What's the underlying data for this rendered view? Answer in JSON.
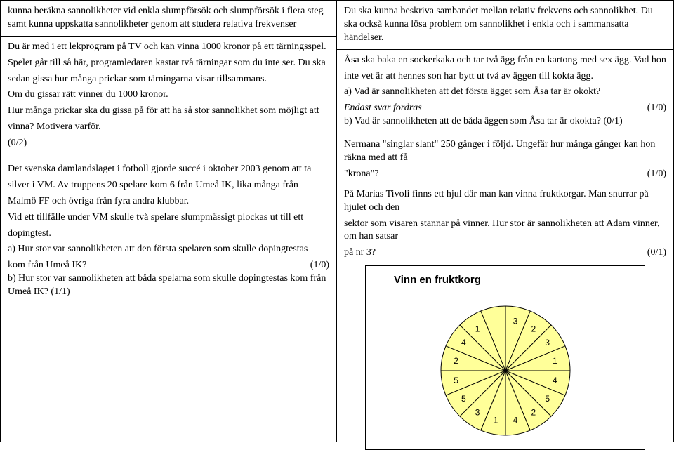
{
  "left": {
    "intro": "kunna beräkna sannolikheter vid enkla slumpförsök och slumpförsök i flera steg samt kunna uppskatta sannolikheter genom att studera relativa frekvenser",
    "problem1": {
      "p1": "Du är med i ett lekprogram på TV och kan vinna 1000 kronor på ett tärningsspel.",
      "p2": "Spelet går till så här, programledaren kastar två tärningar som du inte ser. Du ska",
      "p3": "sedan gissa hur många prickar som tärningarna visar tillsammans.",
      "p4": "Om du gissar rätt vinner du 1000 kronor.",
      "p5": "Hur många prickar ska du gissa på för att ha så stor sannolikhet som möjligt att",
      "p6a": "vinna? Motivera varför.",
      "p6b": "(0/2)"
    },
    "problem2": {
      "p1": "Det svenska damlandslaget i fotboll gjorde succé i oktober 2003 genom att ta",
      "p2": "silver i VM. Av truppens 20 spelare kom 6 från Umeå IK, lika många från",
      "p3": "Malmö FF och övriga från fyra andra klubbar.",
      "p4": "Vid ett tillfälle under VM skulle två spelare slumpmässigt plockas ut till ett",
      "p5": "dopingtest.",
      "qa_text": "a) Hur stor var sannolikheten att den första spelaren som skulle dopingtestas",
      "qa_line": "kom från Umeå IK?",
      "qa_score": "(1/0)",
      "qb_text": "b) Hur stor var sannolikheten att båda spelarna som skulle dopingtestas kom från Umeå IK?   (1/1)"
    }
  },
  "right": {
    "intro": "Du ska kunna beskriva sambandet mellan relativ frekvens och sannolikhet. Du ska också kunna lösa problem om sannolikhet i enkla och i sammansatta händelser.",
    "problem1": {
      "p1": "Åsa ska baka en sockerkaka och tar två ägg från en kartong med sex ägg. Vad hon",
      "p2": "inte vet är att hennes son har bytt ut två av äggen till kokta ägg.",
      "qa": "a) Vad är sannolikheten att det första ägget som Åsa tar är okokt?",
      "endast": "Endast svar fordras",
      "endast_score": "(1/0)",
      "qb": "b) Vad är sannolikheten att de båda äggen som Åsa tar är okokta? (0/1)"
    },
    "problem2": {
      "text": "Nermana \"singlar slant\" 250 gånger i följd. Ungefär hur många gånger kan hon räkna med att få",
      "line": "\"krona\"?",
      "score": "(1/0)"
    },
    "problem3": {
      "p1": "På Marias Tivoli finns ett hjul där man kan vinna fruktkorgar. Man snurrar på hjulet och den",
      "p2": "sektor som visaren stannar på vinner. Hur stor är sannolikheten att Adam vinner, om han satsar",
      "line": "på nr 3?",
      "score": "(0/1)"
    },
    "wheel": {
      "title": "Vinn en fruktkorg",
      "radius": 92,
      "fill": "#ffff99",
      "stroke": "#000000",
      "sector_count": 16,
      "labels": [
        "3",
        "2",
        "3",
        "1",
        "4",
        "5",
        "2",
        "4",
        "1",
        "3",
        "5",
        "5",
        "2",
        "4",
        "1",
        ""
      ],
      "font_family": "Arial, Helvetica, sans-serif",
      "font_size": 12
    }
  }
}
